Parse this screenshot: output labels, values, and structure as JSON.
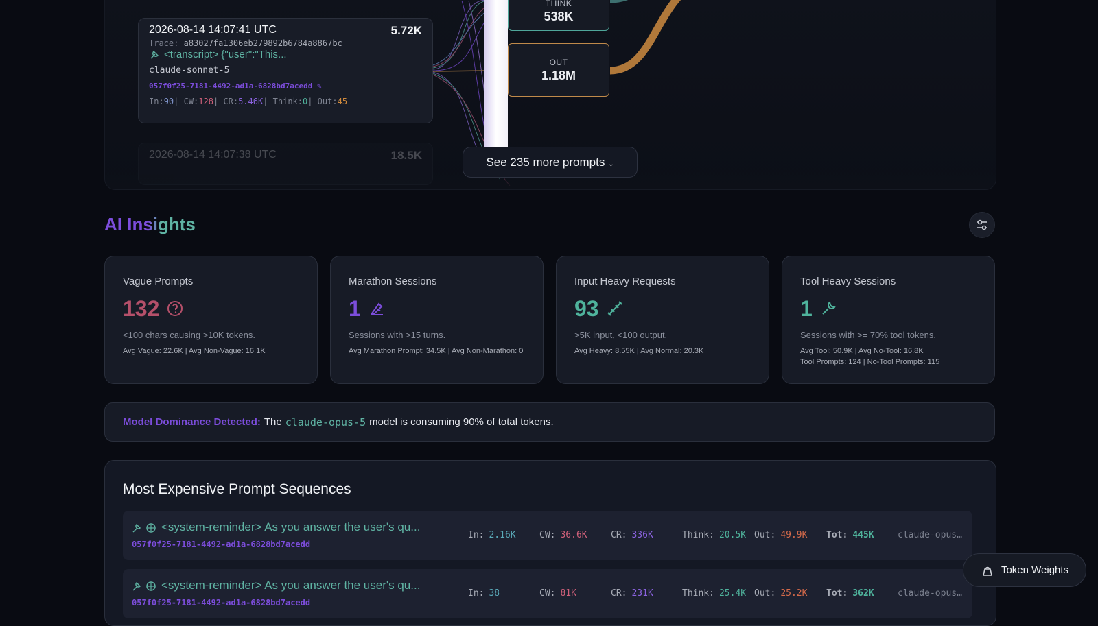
{
  "top": {
    "prompts": [
      {
        "timestamp": "2026-08-14 14:07:41 UTC",
        "tokens": "5.72K",
        "trace_label": "Trace:",
        "trace": "a83027fa1306eb279892b6784a8867bc",
        "text": "<transcript> {\"user\":\"This...",
        "model": "claude-sonnet-5",
        "session": "057f0f25-7181-4492-ad1a-6828bd7acedd",
        "stats": [
          {
            "label": "In:",
            "value": "90"
          },
          {
            "label": "| CW:",
            "value": "128"
          },
          {
            "label": "| CR:",
            "value": "5.46K"
          },
          {
            "label": "| Think:",
            "value": "0"
          },
          {
            "label": "| Out:",
            "value": "45"
          }
        ]
      },
      {
        "timestamp": "2026-08-14 14:07:38 UTC",
        "tokens": "18.5K"
      }
    ],
    "nodes": [
      {
        "label": "THINK",
        "value": "538K"
      },
      {
        "label": "OUT",
        "value": "1.18M"
      }
    ],
    "more_button": "See 235 more prompts ↓"
  },
  "insights": {
    "title": "AI Insights",
    "cards": [
      {
        "title": "Vague Prompts",
        "value": "132",
        "description": "<100 chars causing >10K tokens.",
        "details": [
          "Avg Vague: 22.6K | Avg Non-Vague: 16.1K"
        ]
      },
      {
        "title": "Marathon Sessions",
        "value": "1",
        "description": "Sessions with >15 turns.",
        "details": [
          "Avg Marathon Prompt: 34.5K | Avg Non-Marathon: 0"
        ]
      },
      {
        "title": "Input Heavy Requests",
        "value": "93",
        "description": ">5K input, <100 output.",
        "details": [
          "Avg Heavy: 8.55K | Avg Normal: 20.3K"
        ]
      },
      {
        "title": "Tool Heavy Sessions",
        "value": "1",
        "description": "Sessions with >= 70% tool tokens.",
        "details": [
          "Avg Tool: 50.9K | Avg No-Tool: 16.8K",
          "Tool Prompts: 124 | No-Tool Prompts: 115"
        ]
      }
    ]
  },
  "banner": {
    "label": "Model Dominance Detected:",
    "before": "The",
    "model": "claude-opus-5",
    "after": "model is consuming 90% of total tokens."
  },
  "expensive": {
    "title": "Most Expensive Prompt Sequences",
    "rows": [
      {
        "prompt": "<system-reminder> As you answer the user's qu...",
        "session": "057f0f25-7181-4492-ad1a-6828bd7acedd",
        "stats": [
          {
            "label": "In:",
            "value": "2.16K"
          },
          {
            "label": "CW:",
            "value": "36.6K"
          },
          {
            "label": "CR:",
            "value": "336K"
          },
          {
            "label": "Think:",
            "value": "20.5K"
          },
          {
            "label": "Out:",
            "value": "49.9K"
          },
          {
            "label": "Tot:",
            "value": "445K"
          }
        ],
        "model": "claude-opus…"
      },
      {
        "prompt": "<system-reminder> As you answer the user's qu...",
        "session": "057f0f25-7181-4492-ad1a-6828bd7acedd",
        "stats": [
          {
            "label": "In:",
            "value": "38"
          },
          {
            "label": "CW:",
            "value": "81K"
          },
          {
            "label": "CR:",
            "value": "231K"
          },
          {
            "label": "Think:",
            "value": "25.4K"
          },
          {
            "label": "Out:",
            "value": "25.2K"
          },
          {
            "label": "Tot:",
            "value": "362K"
          }
        ],
        "model": "claude-opus…"
      }
    ]
  },
  "token_weights": "Token Weights"
}
